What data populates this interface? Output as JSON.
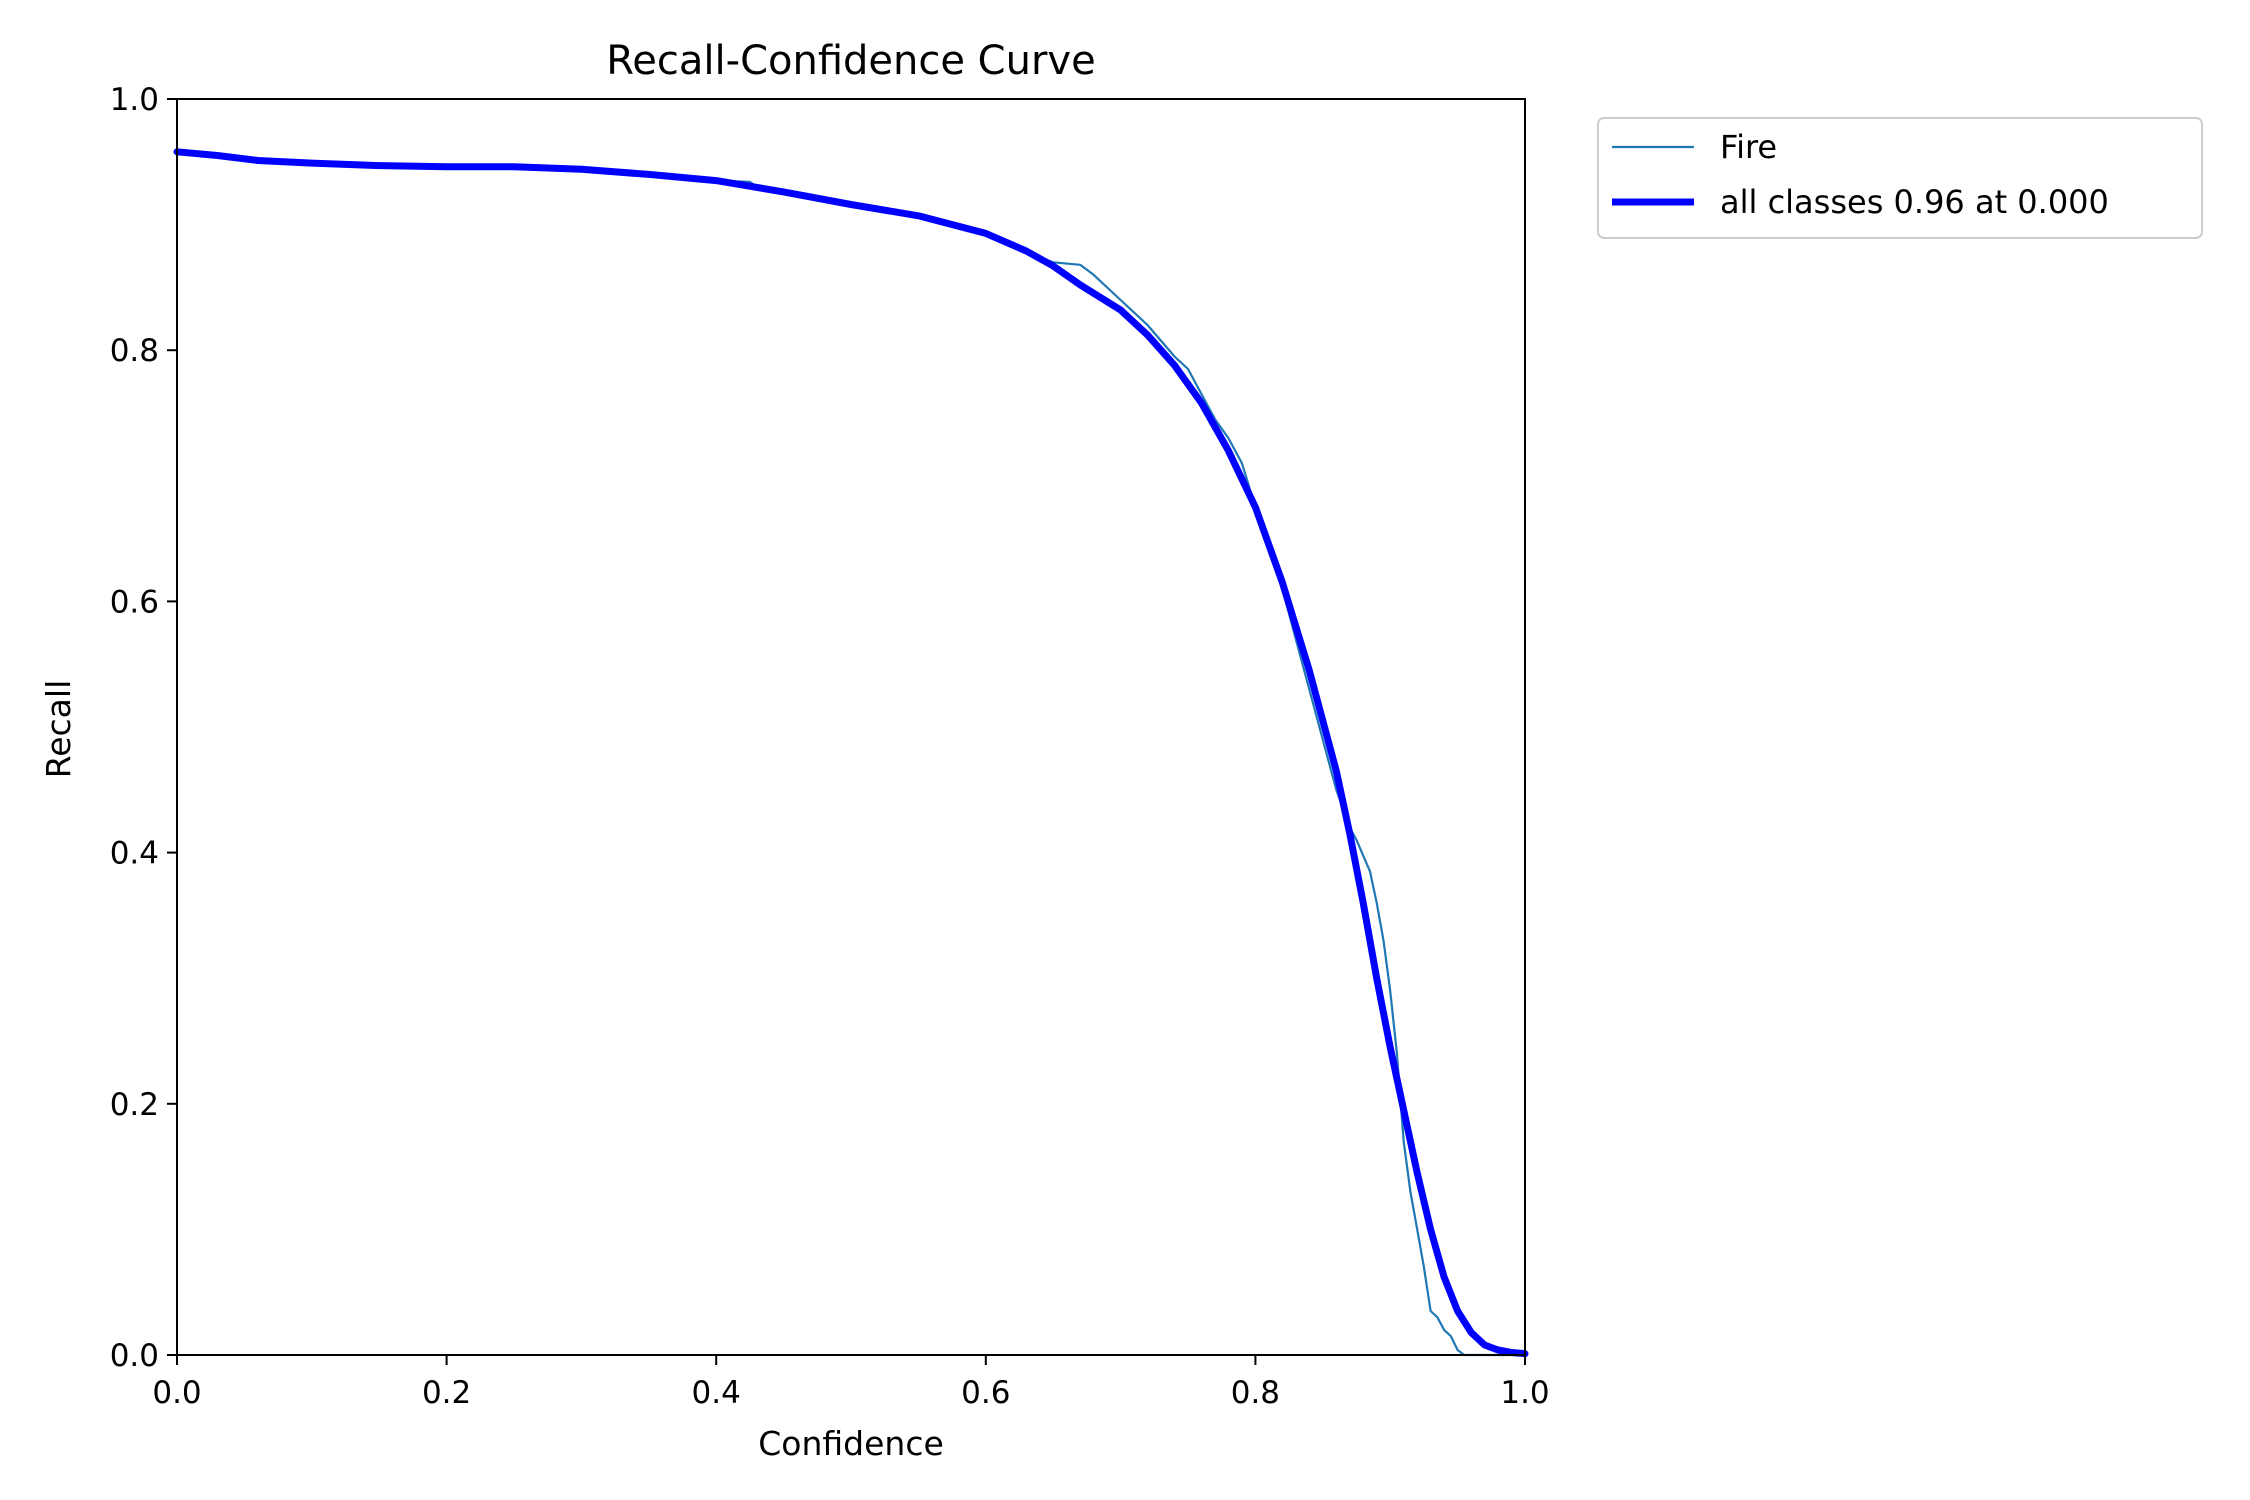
{
  "chart_data": {
    "type": "line",
    "title": "Recall-Confidence Curve",
    "xlabel": "Confidence",
    "ylabel": "Recall",
    "xlim": [
      0.0,
      1.0
    ],
    "ylim": [
      0.0,
      1.0
    ],
    "xticks": [
      "0.0",
      "0.2",
      "0.4",
      "0.6",
      "0.8",
      "1.0"
    ],
    "yticks": [
      "0.0",
      "0.2",
      "0.4",
      "0.6",
      "0.8",
      "1.0"
    ],
    "grid": false,
    "legend_position": "outside-top-right",
    "series": [
      {
        "name": "Fire",
        "color": "#1f77b4",
        "style": "thin",
        "points": [
          [
            0.0,
            0.958
          ],
          [
            0.03,
            0.954
          ],
          [
            0.06,
            0.95
          ],
          [
            0.1,
            0.948
          ],
          [
            0.15,
            0.946
          ],
          [
            0.2,
            0.945
          ],
          [
            0.25,
            0.945
          ],
          [
            0.3,
            0.943
          ],
          [
            0.35,
            0.939
          ],
          [
            0.4,
            0.935
          ],
          [
            0.425,
            0.934
          ],
          [
            0.43,
            0.93
          ],
          [
            0.45,
            0.925
          ],
          [
            0.5,
            0.915
          ],
          [
            0.55,
            0.906
          ],
          [
            0.6,
            0.892
          ],
          [
            0.63,
            0.878
          ],
          [
            0.65,
            0.87
          ],
          [
            0.67,
            0.868
          ],
          [
            0.68,
            0.86
          ],
          [
            0.7,
            0.84
          ],
          [
            0.72,
            0.82
          ],
          [
            0.74,
            0.795
          ],
          [
            0.75,
            0.785
          ],
          [
            0.76,
            0.765
          ],
          [
            0.77,
            0.745
          ],
          [
            0.78,
            0.73
          ],
          [
            0.79,
            0.71
          ],
          [
            0.8,
            0.675
          ],
          [
            0.81,
            0.645
          ],
          [
            0.82,
            0.61
          ],
          [
            0.83,
            0.57
          ],
          [
            0.84,
            0.53
          ],
          [
            0.85,
            0.49
          ],
          [
            0.86,
            0.45
          ],
          [
            0.87,
            0.42
          ],
          [
            0.875,
            0.41
          ],
          [
            0.885,
            0.385
          ],
          [
            0.89,
            0.36
          ],
          [
            0.895,
            0.33
          ],
          [
            0.9,
            0.29
          ],
          [
            0.905,
            0.24
          ],
          [
            0.91,
            0.17
          ],
          [
            0.915,
            0.13
          ],
          [
            0.92,
            0.1
          ],
          [
            0.925,
            0.07
          ],
          [
            0.93,
            0.035
          ],
          [
            0.935,
            0.03
          ],
          [
            0.94,
            0.02
          ],
          [
            0.945,
            0.015
          ],
          [
            0.95,
            0.004
          ],
          [
            0.955,
            0.0
          ],
          [
            1.0,
            0.0
          ]
        ]
      },
      {
        "name": "all classes 0.96 at 0.000",
        "color": "#0000ff",
        "style": "thick",
        "points": [
          [
            0.0,
            0.958
          ],
          [
            0.03,
            0.955
          ],
          [
            0.06,
            0.951
          ],
          [
            0.1,
            0.949
          ],
          [
            0.15,
            0.947
          ],
          [
            0.2,
            0.946
          ],
          [
            0.25,
            0.946
          ],
          [
            0.3,
            0.944
          ],
          [
            0.35,
            0.94
          ],
          [
            0.4,
            0.935
          ],
          [
            0.45,
            0.926
          ],
          [
            0.5,
            0.916
          ],
          [
            0.55,
            0.907
          ],
          [
            0.6,
            0.893
          ],
          [
            0.63,
            0.879
          ],
          [
            0.65,
            0.867
          ],
          [
            0.67,
            0.852
          ],
          [
            0.7,
            0.832
          ],
          [
            0.72,
            0.812
          ],
          [
            0.74,
            0.788
          ],
          [
            0.76,
            0.758
          ],
          [
            0.78,
            0.72
          ],
          [
            0.8,
            0.675
          ],
          [
            0.82,
            0.615
          ],
          [
            0.84,
            0.545
          ],
          [
            0.86,
            0.465
          ],
          [
            0.87,
            0.415
          ],
          [
            0.88,
            0.36
          ],
          [
            0.89,
            0.3
          ],
          [
            0.9,
            0.245
          ],
          [
            0.91,
            0.195
          ],
          [
            0.92,
            0.145
          ],
          [
            0.93,
            0.1
          ],
          [
            0.94,
            0.062
          ],
          [
            0.95,
            0.035
          ],
          [
            0.96,
            0.018
          ],
          [
            0.97,
            0.008
          ],
          [
            0.98,
            0.004
          ],
          [
            0.99,
            0.002
          ],
          [
            1.0,
            0.001
          ]
        ]
      }
    ]
  }
}
